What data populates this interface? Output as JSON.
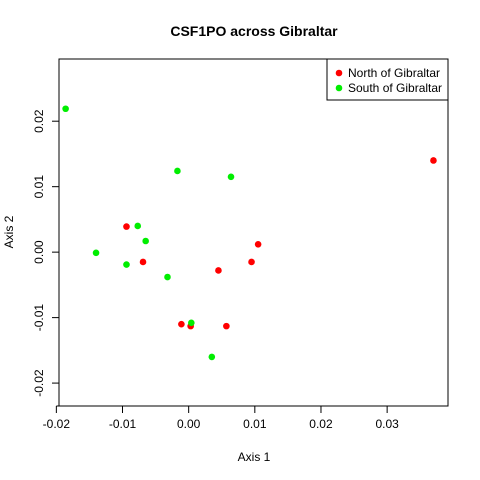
{
  "chart_data": {
    "type": "scatter",
    "title": "CSF1PO across Gibraltar",
    "xlabel": "Axis 1",
    "ylabel": "Axis 2",
    "xlim": [
      -0.0196,
      0.0392
    ],
    "ylim": [
      -0.0235,
      0.0295
    ],
    "xticks": [
      -0.02,
      -0.01,
      0.0,
      0.01,
      0.02,
      0.03
    ],
    "xtick_labels": [
      "-0.02",
      "-0.01",
      "0.00",
      "0.01",
      "0.02",
      "0.03"
    ],
    "yticks": [
      -0.02,
      -0.01,
      0.0,
      0.01,
      0.02
    ],
    "ytick_labels": [
      "-0.02",
      "-0.01",
      "0.00",
      "0.01",
      "0.02"
    ],
    "grid": false,
    "legend_position": "top-right",
    "series": [
      {
        "name": "North of Gibraltar",
        "color": "#ff0000",
        "points": [
          {
            "x": 0.037,
            "y": 0.014
          },
          {
            "x": -0.0094,
            "y": 0.0039
          },
          {
            "x": -0.0069,
            "y": -0.0015
          },
          {
            "x": 0.0105,
            "y": 0.0012
          },
          {
            "x": 0.0095,
            "y": -0.0015
          },
          {
            "x": 0.0045,
            "y": -0.0028
          },
          {
            "x": -0.0011,
            "y": -0.011
          },
          {
            "x": 0.0003,
            "y": -0.0113
          },
          {
            "x": 0.0057,
            "y": -0.0113
          }
        ]
      },
      {
        "name": "South of Gibraltar",
        "color": "#00ee00",
        "points": [
          {
            "x": -0.0186,
            "y": 0.0219
          },
          {
            "x": -0.0017,
            "y": 0.0124
          },
          {
            "x": 0.0064,
            "y": 0.0115
          },
          {
            "x": -0.0077,
            "y": 0.004
          },
          {
            "x": -0.0065,
            "y": 0.0017
          },
          {
            "x": -0.014,
            "y": -0.0001
          },
          {
            "x": -0.0094,
            "y": -0.0019
          },
          {
            "x": -0.0032,
            "y": -0.0038
          },
          {
            "x": 0.0004,
            "y": -0.0108
          },
          {
            "x": 0.0035,
            "y": -0.016
          }
        ]
      }
    ]
  }
}
